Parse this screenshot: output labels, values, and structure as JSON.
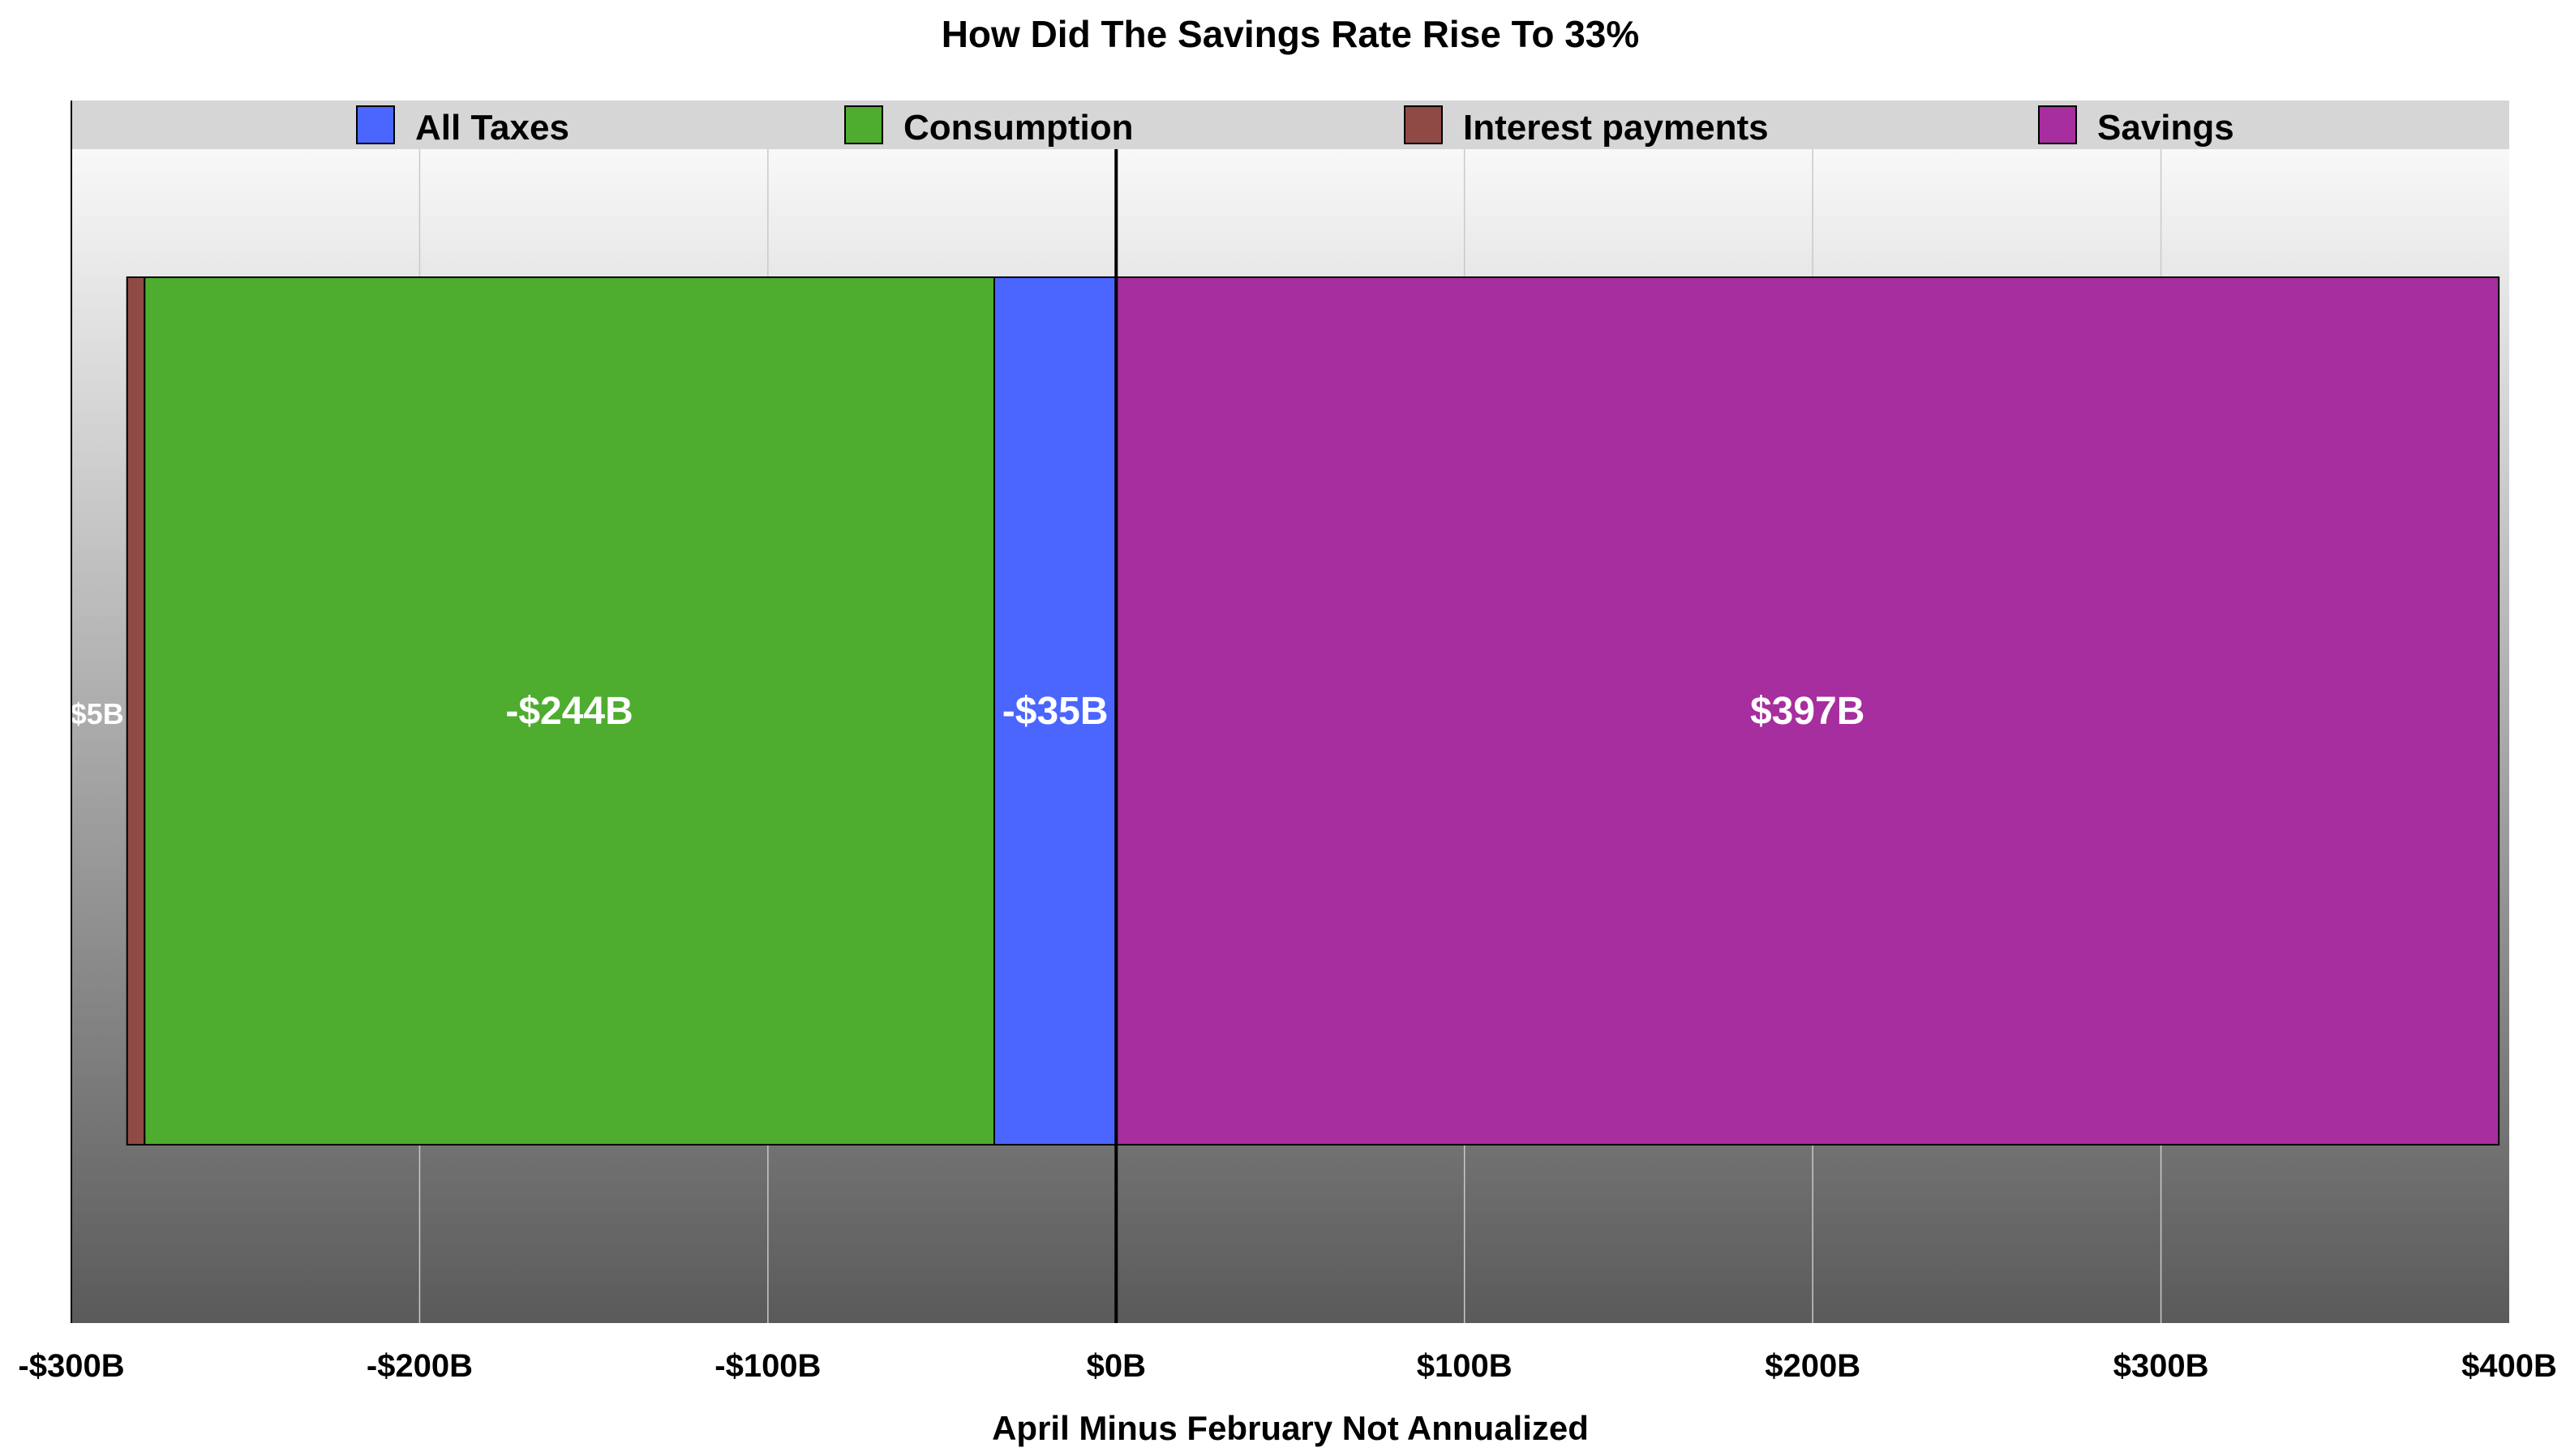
{
  "chart_data": {
    "type": "bar",
    "orientation": "horizontal",
    "stacked": true,
    "title": "How Did The Savings Rate Rise To 33%",
    "xlabel": "April Minus February Not Annualized",
    "ylabel": "",
    "xlim": [
      -300,
      400
    ],
    "x_ticks": [
      "-$300B",
      "-$200B",
      "-$100B",
      "$0B",
      "$100B",
      "$200B",
      "$300B",
      "$400B"
    ],
    "grid": true,
    "legend_position": "top",
    "series": [
      {
        "name": "All Taxes",
        "value": -35,
        "label": "-$35B",
        "color": "#4a66ff"
      },
      {
        "name": "Consumption",
        "value": -244,
        "label": "-$244B",
        "color": "#4eac2e"
      },
      {
        "name": "Interest payments",
        "value": -5,
        "label": "-$5B",
        "color": "#8f4a45"
      },
      {
        "name": "Savings",
        "value": 397,
        "label": "$397B",
        "color": "#a72e9e"
      }
    ],
    "background_gradient": [
      "#ffffff",
      "#5a5a5a"
    ],
    "legend_band_color": "#d6d6d6"
  }
}
